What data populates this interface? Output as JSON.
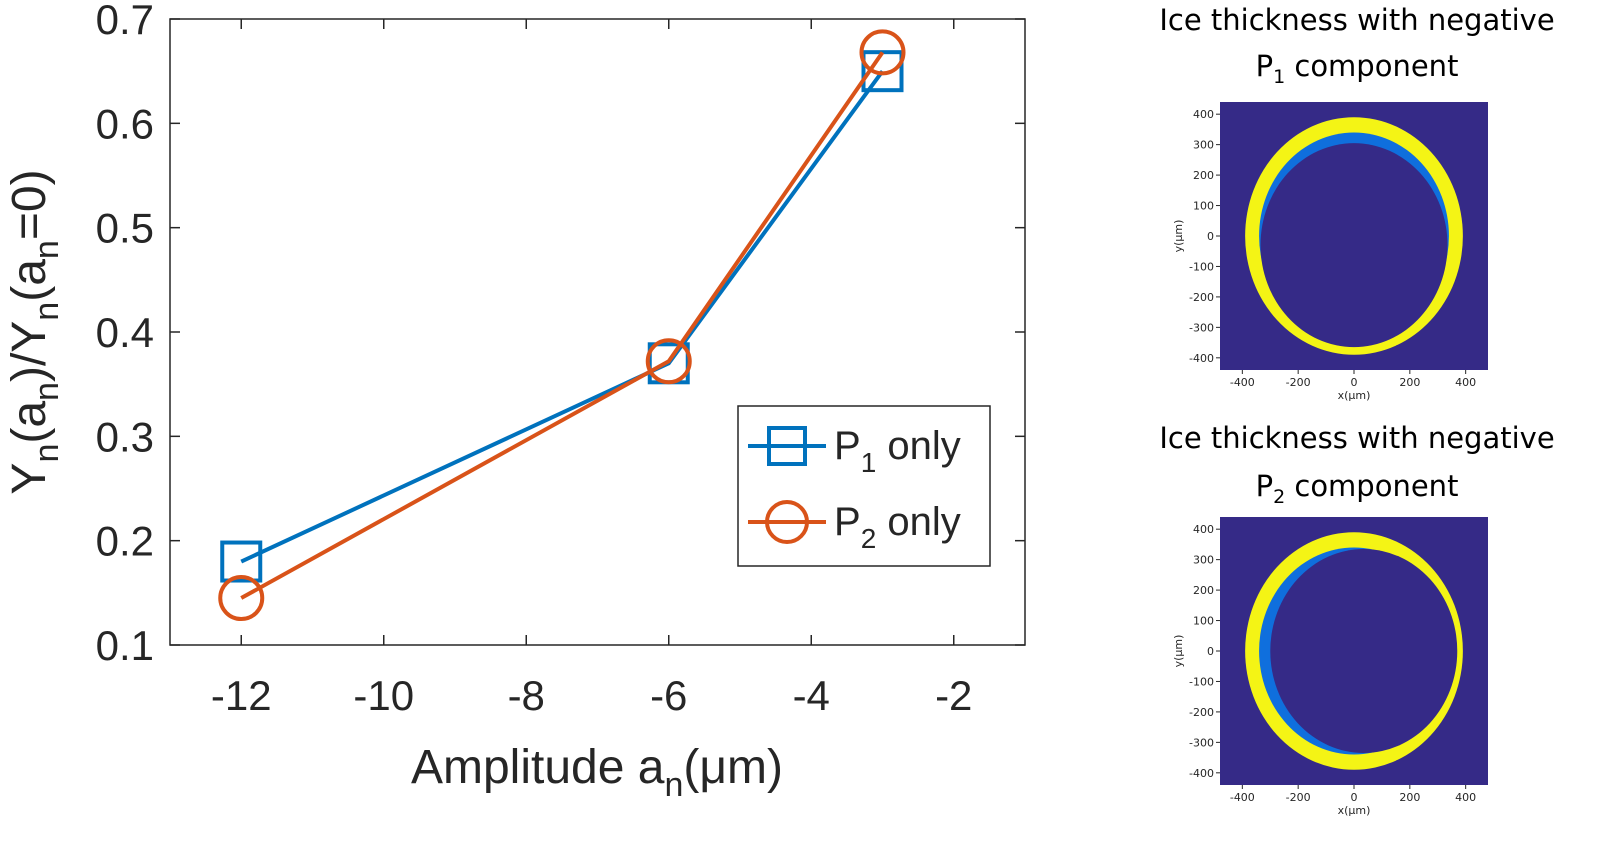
{
  "chart_data": [
    {
      "type": "line",
      "ylabel_parts": [
        "Y",
        "n",
        "(a",
        "n",
        ")/Y",
        "n",
        "(a",
        "n",
        "=0)"
      ],
      "xlabel_parts": [
        "Amplitude a",
        "n",
        "(",
        "μ",
        "m)"
      ],
      "xlim": [
        -13,
        -1
      ],
      "ylim": [
        0.1,
        0.7
      ],
      "xticks": [
        -12,
        -10,
        -8,
        -6,
        -4,
        -2
      ],
      "yticks": [
        0.1,
        0.2,
        0.3,
        0.4,
        0.5,
        0.6,
        0.7
      ],
      "grid": false,
      "legend_position": "lower-right",
      "series": [
        {
          "name": "P1 only",
          "legend": {
            "main": "P",
            "sub": "1",
            "rest": "only"
          },
          "marker": "square",
          "color": "#0072BD",
          "x": [
            -12,
            -6,
            -3
          ],
          "y": [
            0.18,
            0.37,
            0.65
          ]
        },
        {
          "name": "P2 only",
          "legend": {
            "main": "P",
            "sub": "2",
            "rest": "only"
          },
          "marker": "circle",
          "color": "#D95319",
          "x": [
            -12,
            -6,
            -3
          ],
          "y": [
            0.145,
            0.372,
            0.668
          ]
        }
      ]
    },
    {
      "type": "heatmap",
      "title_line1": "Ice thickness with negative",
      "title_line2": {
        "main": "P",
        "sub": "1",
        "rest": " component"
      },
      "xlabel": "x(μm)",
      "ylabel": "y(μm)",
      "xticks": [
        -400,
        -200,
        0,
        200,
        400
      ],
      "yticks": [
        400,
        300,
        200,
        100,
        0,
        -100,
        -200,
        -300,
        -400
      ],
      "xlim": [
        -480,
        480
      ],
      "ylim": [
        -440,
        440
      ],
      "ring_outer_radius": 390,
      "ring_inner_radius": 340,
      "offset_x": 0,
      "offset_y": -30,
      "colors": {
        "background": "#352A87",
        "ice": "#0F6FDD",
        "ring": "#F4F415"
      }
    },
    {
      "type": "heatmap",
      "title_line1": "Ice thickness with negative",
      "title_line2": {
        "main": "P",
        "sub": "2",
        "rest": " component"
      },
      "xlabel": "x(μm)",
      "ylabel": "y(μm)",
      "xticks": [
        -400,
        -200,
        0,
        200,
        400
      ],
      "yticks": [
        400,
        300,
        200,
        100,
        0,
        -100,
        -200,
        -300,
        -400
      ],
      "xlim": [
        -480,
        480
      ],
      "ylim": [
        -440,
        440
      ],
      "ring_outer_radius": 390,
      "ring_inner_radius": 340,
      "offset_x": 35,
      "offset_y": 0,
      "colors": {
        "background": "#352A87",
        "ice": "#0F6FDD",
        "ring": "#F4F415"
      }
    }
  ]
}
